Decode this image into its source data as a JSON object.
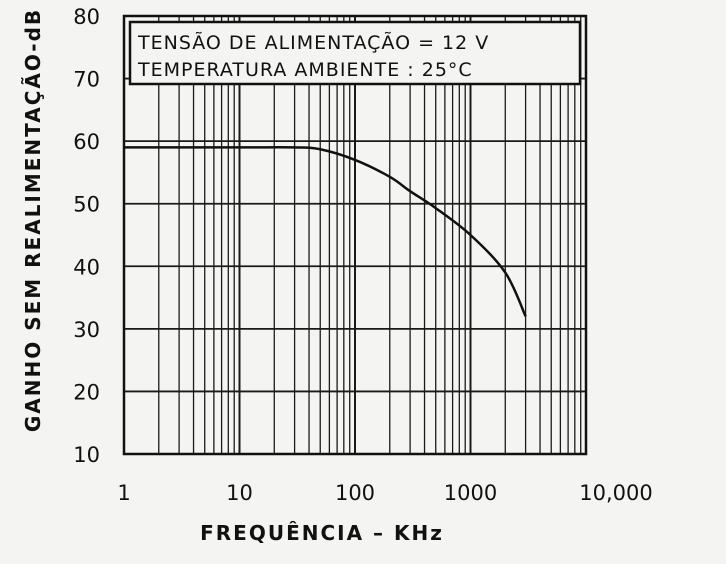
{
  "chart_data": {
    "type": "line",
    "xscale": "log",
    "xlabel": "FREQUÊNCIA – KHz",
    "ylabel": "GANHO SEM REALIMENTAÇÃO-dB",
    "xlim": [
      1,
      10000
    ],
    "ylim": [
      10,
      80
    ],
    "x_ticks": [
      "1",
      "10",
      "100",
      "1000",
      "10,000"
    ],
    "y_ticks": [
      "10",
      "20",
      "30",
      "40",
      "50",
      "60",
      "70",
      "80"
    ],
    "grid": true,
    "annotation": {
      "line1": "TENSÃO  DE ALIMENTAÇÃO = 12 V",
      "line2": "TEMPERATURA  AMBIENTE : 25°C"
    },
    "series": [
      {
        "x": [
          1,
          10,
          30,
          50,
          100,
          200,
          300,
          500,
          1000,
          2000,
          3000
        ],
        "y": [
          59,
          59,
          59,
          58.7,
          57,
          54.3,
          52,
          49.3,
          45,
          39,
          32
        ]
      }
    ]
  }
}
